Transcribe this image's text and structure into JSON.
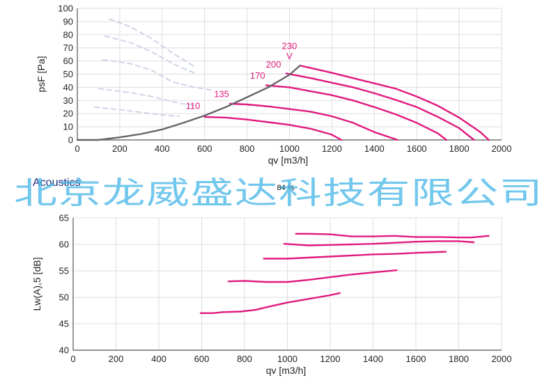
{
  "colors": {
    "curve": "#e0197d",
    "system": "#666666",
    "dashed": "#c8d2e6",
    "grid": "#dddddd",
    "axis": "#555555",
    "watermark": "#3db2e6",
    "section_title": "#1e2b78"
  },
  "watermark": "北京龙威盛达科技有限公司",
  "section_title": "Acoustics",
  "efficiency_badge": "84 %",
  "chart_data": [
    {
      "type": "line",
      "title": "",
      "xlabel": "qv [m3/h]",
      "ylabel": "psF [Pa]",
      "xlim": [
        0,
        2000
      ],
      "ylim": [
        0,
        100
      ],
      "xticks": [
        0,
        200,
        400,
        600,
        800,
        1000,
        1200,
        1400,
        1600,
        1800,
        2000
      ],
      "yticks": [
        0,
        10,
        20,
        30,
        40,
        50,
        60,
        70,
        80,
        90,
        100
      ],
      "grid": true,
      "series": [
        {
          "name": "110",
          "points": [
            [
              600,
              17.5
            ],
            [
              700,
              17
            ],
            [
              800,
              15.5
            ],
            [
              900,
              13.5
            ],
            [
              1000,
              11.5
            ],
            [
              1100,
              8.5
            ],
            [
              1200,
              4
            ],
            [
              1245,
              0
            ]
          ]
        },
        {
          "name": "135",
          "points": [
            [
              720,
              27.5
            ],
            [
              800,
              27
            ],
            [
              900,
              25.5
            ],
            [
              1000,
              23.5
            ],
            [
              1100,
              21.5
            ],
            [
              1200,
              18
            ],
            [
              1300,
              13
            ],
            [
              1400,
              6
            ],
            [
              1510,
              0
            ]
          ]
        },
        {
          "name": "170",
          "points": [
            [
              890,
              41.5
            ],
            [
              1000,
              40
            ],
            [
              1100,
              37
            ],
            [
              1200,
              34
            ],
            [
              1300,
              30
            ],
            [
              1400,
              25
            ],
            [
              1500,
              19.5
            ],
            [
              1600,
              13
            ],
            [
              1700,
              5
            ],
            [
              1740,
              0
            ]
          ]
        },
        {
          "name": "200",
          "points": [
            [
              985,
              50.5
            ],
            [
              1100,
              47
            ],
            [
              1200,
              43.5
            ],
            [
              1300,
              40
            ],
            [
              1400,
              35.5
            ],
            [
              1500,
              30.5
            ],
            [
              1600,
              25
            ],
            [
              1700,
              17.5
            ],
            [
              1800,
              9
            ],
            [
              1870,
              0
            ]
          ]
        },
        {
          "name": "230",
          "points": [
            [
              1050,
              56.5
            ],
            [
              1200,
              51
            ],
            [
              1300,
              47
            ],
            [
              1400,
              43
            ],
            [
              1500,
              39
            ],
            [
              1600,
              33
            ],
            [
              1700,
              26
            ],
            [
              1800,
              17
            ],
            [
              1900,
              6
            ],
            [
              1940,
              0
            ]
          ]
        },
        {
          "name": "",
          "role": "system",
          "points": [
            [
              0,
              0
            ],
            [
              100,
              0
            ],
            [
              200,
              2
            ],
            [
              300,
              4.5
            ],
            [
              400,
              8
            ],
            [
              500,
              13
            ],
            [
              600,
              18.5
            ],
            [
              700,
              25
            ],
            [
              800,
              32.5
            ],
            [
              900,
              40
            ],
            [
              1000,
              49.5
            ],
            [
              1050,
              56.5
            ]
          ]
        },
        {
          "name": "",
          "role": "dashed",
          "points": [
            [
              150,
              92
            ],
            [
              250,
              86
            ],
            [
              350,
              77
            ],
            [
              450,
              66
            ],
            [
              550,
              56
            ]
          ]
        },
        {
          "name": "",
          "role": "dashed",
          "points": [
            [
              130,
              79
            ],
            [
              250,
              74
            ],
            [
              350,
              67
            ],
            [
              450,
              58
            ],
            [
              550,
              51
            ]
          ]
        },
        {
          "name": "",
          "role": "dashed",
          "points": [
            [
              120,
              61
            ],
            [
              250,
              58
            ],
            [
              350,
              53
            ],
            [
              450,
              44
            ],
            [
              550,
              40
            ],
            [
              630,
              38
            ]
          ]
        },
        {
          "name": "",
          "role": "dashed",
          "points": [
            [
              100,
              39
            ],
            [
              250,
              36
            ],
            [
              350,
              33
            ],
            [
              450,
              29
            ],
            [
              550,
              26
            ]
          ]
        },
        {
          "name": "",
          "role": "dashed",
          "points": [
            [
              80,
              25
            ],
            [
              200,
              23
            ],
            [
              300,
              21
            ],
            [
              400,
              19
            ],
            [
              480,
              18
            ]
          ]
        }
      ],
      "annotations": [
        {
          "text": "230",
          "x": 1000,
          "y": 69
        },
        {
          "text": "V",
          "x": 1000,
          "y": 61.5
        },
        {
          "text": "200",
          "x": 925,
          "y": 55
        },
        {
          "text": "170",
          "x": 850,
          "y": 46.5
        },
        {
          "text": "135",
          "x": 680,
          "y": 32.5
        },
        {
          "text": "110",
          "x": 545,
          "y": 23.5
        }
      ]
    },
    {
      "type": "line",
      "title": "",
      "xlabel": "qv [m3/h]",
      "ylabel": "Lw(A),5 [dB]",
      "xlim": [
        0,
        2000
      ],
      "ylim": [
        40,
        65
      ],
      "xticks": [
        0,
        200,
        400,
        600,
        800,
        1000,
        1200,
        1400,
        1600,
        1800,
        2000
      ],
      "yticks": [
        40,
        45,
        50,
        55,
        60,
        65
      ],
      "grid": true,
      "series": [
        {
          "name": "",
          "points": [
            [
              595,
              47
            ],
            [
              650,
              47
            ],
            [
              700,
              47.2
            ],
            [
              780,
              47.3
            ],
            [
              850,
              47.6
            ],
            [
              900,
              48.1
            ],
            [
              1000,
              49
            ],
            [
              1100,
              49.7
            ],
            [
              1200,
              50.4
            ],
            [
              1245,
              50.8
            ]
          ]
        },
        {
          "name": "",
          "points": [
            [
              725,
              53
            ],
            [
              800,
              53.1
            ],
            [
              900,
              52.9
            ],
            [
              1000,
              52.9
            ],
            [
              1100,
              53.3
            ],
            [
              1200,
              53.8
            ],
            [
              1300,
              54.3
            ],
            [
              1400,
              54.7
            ],
            [
              1510,
              55.1
            ]
          ]
        },
        {
          "name": "",
          "points": [
            [
              890,
              57.3
            ],
            [
              1000,
              57.3
            ],
            [
              1100,
              57.5
            ],
            [
              1200,
              57.7
            ],
            [
              1300,
              57.9
            ],
            [
              1400,
              58.1
            ],
            [
              1500,
              58.2
            ],
            [
              1600,
              58.4
            ],
            [
              1740,
              58.6
            ]
          ]
        },
        {
          "name": "",
          "points": [
            [
              985,
              60.1
            ],
            [
              1100,
              59.8
            ],
            [
              1200,
              59.9
            ],
            [
              1300,
              60
            ],
            [
              1400,
              60.1
            ],
            [
              1500,
              60.3
            ],
            [
              1600,
              60.5
            ],
            [
              1700,
              60.6
            ],
            [
              1800,
              60.6
            ],
            [
              1870,
              60.4
            ]
          ]
        },
        {
          "name": "",
          "points": [
            [
              1040,
              62
            ],
            [
              1100,
              62
            ],
            [
              1200,
              61.9
            ],
            [
              1300,
              61.5
            ],
            [
              1400,
              61.5
            ],
            [
              1500,
              61.6
            ],
            [
              1600,
              61.4
            ],
            [
              1700,
              61.4
            ],
            [
              1800,
              61.3
            ],
            [
              1860,
              61.3
            ],
            [
              1940,
              61.6
            ]
          ]
        }
      ]
    }
  ]
}
